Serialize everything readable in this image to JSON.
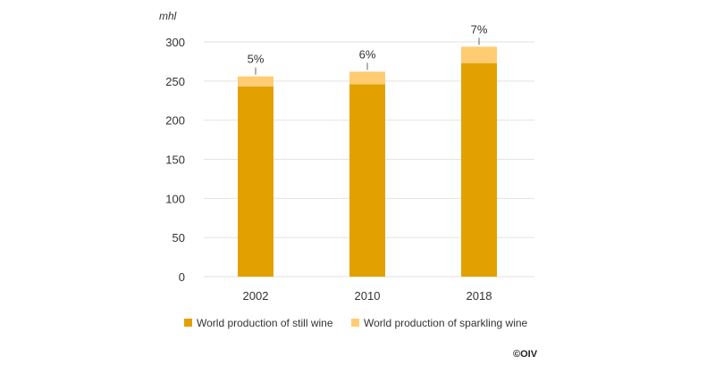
{
  "chart_data": {
    "type": "bar",
    "stacked": true,
    "categories": [
      "2002",
      "2010",
      "2018"
    ],
    "series": [
      {
        "name": "World production of still wine",
        "values": [
          243,
          246,
          273
        ],
        "color": "#E3A100"
      },
      {
        "name": "World production of sparkling wine",
        "values": [
          13,
          16,
          21
        ],
        "color": "#FFCC73"
      }
    ],
    "data_labels": [
      "5%",
      "6%",
      "7%"
    ],
    "ylabel": "mhl",
    "ylim": [
      0,
      300
    ],
    "yticks": [
      0,
      50,
      100,
      150,
      200,
      250,
      300
    ],
    "grid": true,
    "legend_position": "bottom",
    "credit": "©OIV"
  }
}
